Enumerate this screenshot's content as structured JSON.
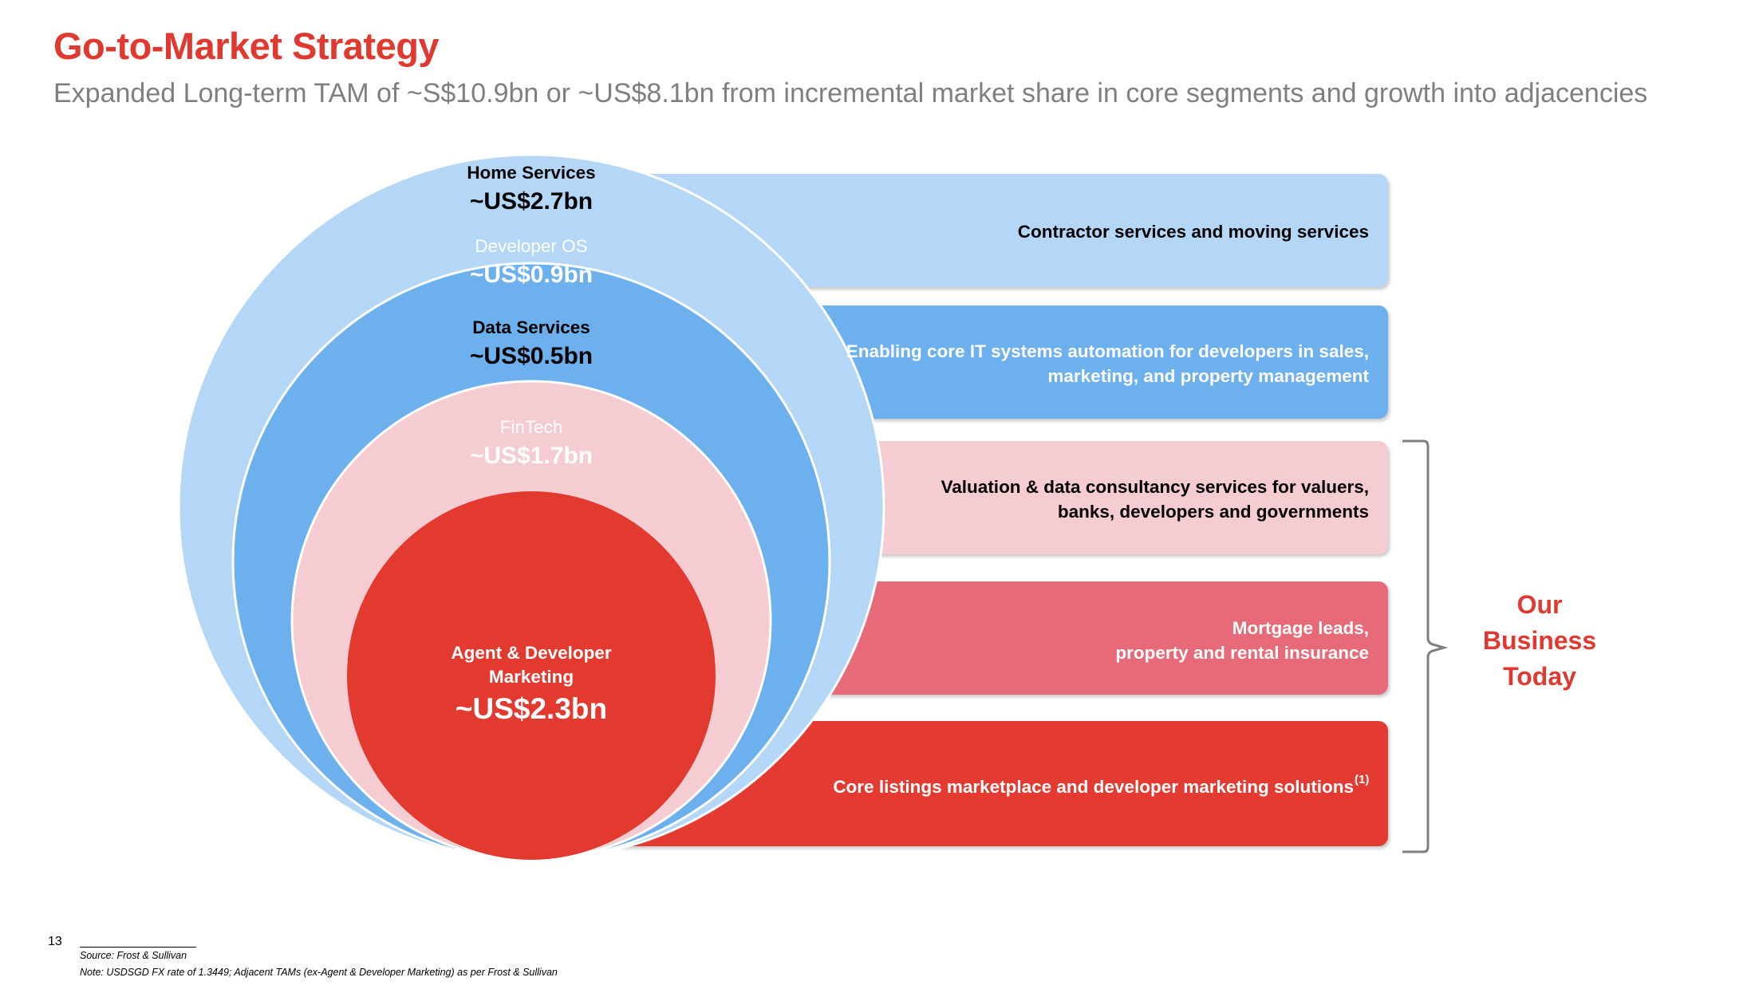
{
  "title": "Go-to-Market Strategy",
  "subtitle": "Expanded Long-term TAM of ~S$10.9bn or ~US$8.1bn from incremental market share in core segments and growth into adjacencies",
  "colors": {
    "accent_red": "#e0392f",
    "home_services": "#b4d7f8",
    "developer_os": "#6db0ee",
    "data_services": "#f6ccd3",
    "fintech": "#e66a77",
    "agent_developer": "#e33a30"
  },
  "segments": [
    {
      "name": "Home Services",
      "value": "~US$2.7bn",
      "description_lines": [
        "Contractor services and moving services"
      ]
    },
    {
      "name": "Developer OS",
      "value": "~US$0.9bn",
      "description_lines": [
        "Enabling core IT systems automation for developers in sales,",
        "marketing, and property management"
      ]
    },
    {
      "name": "Data Services",
      "value": "~US$0.5bn",
      "description_lines": [
        "Valuation & data consultancy services for valuers,",
        "banks, developers and governments"
      ]
    },
    {
      "name": "FinTech",
      "value": "~US$1.7bn",
      "description_lines": [
        "Mortgage leads,",
        "property and rental insurance"
      ]
    },
    {
      "name_lines": [
        "Agent & Developer",
        "Marketing"
      ],
      "value": "~US$2.3bn",
      "description": "Core listings marketplace and developer marketing solutions",
      "footnote_marker": "(1)"
    }
  ],
  "our_business_today": [
    "Our",
    "Business",
    "Today"
  ],
  "page_number": "13",
  "source": "Source: Frost & Sullivan",
  "note": "Note: USDSGD FX rate of 1.3449; Adjacent TAMs (ex-Agent & Developer Marketing) as per Frost & Sullivan"
}
